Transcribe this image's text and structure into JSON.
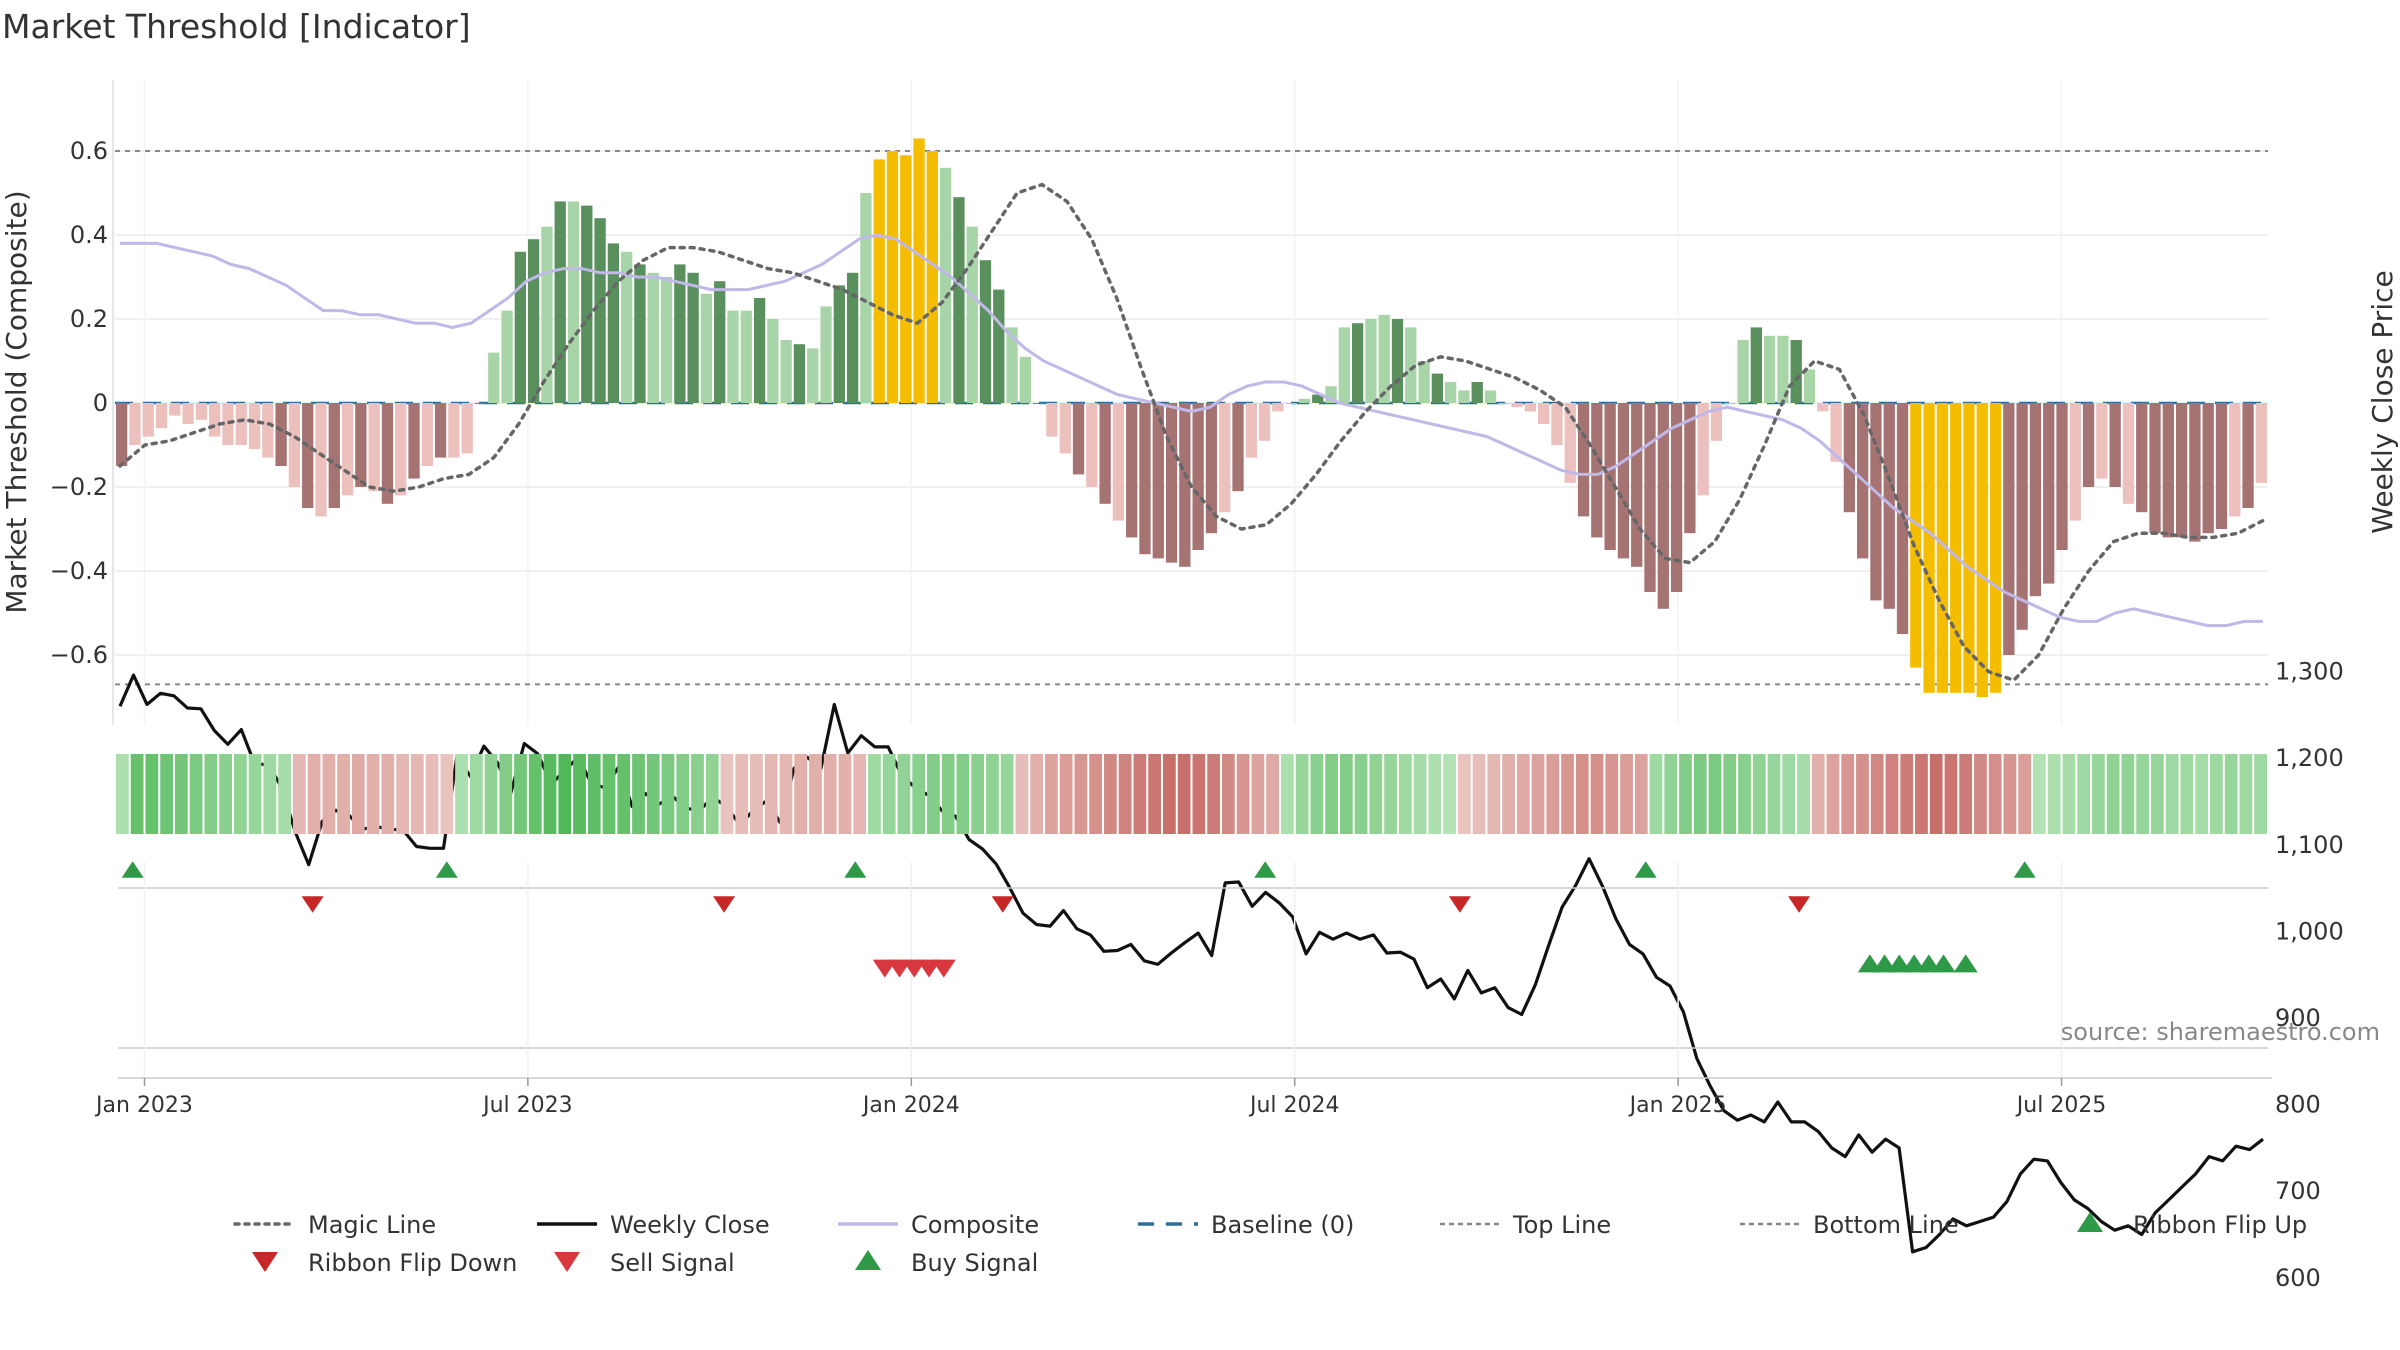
{
  "chart_data": {
    "type": "bar",
    "title": "Market Threshold [Indicator]",
    "ylabel_left": "Market Threshold (Composite)",
    "ylabel_right": "Weekly Close Price",
    "source": "source: sharemaestro.com",
    "ylim_left": [
      -0.77,
      0.77
    ],
    "ylim_right": [
      600,
      1300
    ],
    "yticks_left": [
      -0.6,
      -0.4,
      -0.2,
      0,
      0.2,
      0.4,
      0.6
    ],
    "yticks_left_labels": [
      "−0.6",
      "−0.4",
      "−0.2",
      "0",
      "0.2",
      "0.4",
      "0.6"
    ],
    "yticks_right": [
      600,
      700,
      800,
      900,
      1000,
      1100,
      1200,
      1300
    ],
    "yticks_right_labels": [
      "600",
      "700",
      "800",
      "900",
      "1,000",
      "1,100",
      "1,200",
      "1,300"
    ],
    "x_range_weeks": [
      0,
      146
    ],
    "date_ticks": [
      {
        "label": "Jan 2023",
        "week": 2
      },
      {
        "label": "Jul 2023",
        "week": 28
      },
      {
        "label": "Jan 2024",
        "week": 54
      },
      {
        "label": "Jul 2024",
        "week": 80
      },
      {
        "label": "Jan 2025",
        "week": 106
      },
      {
        "label": "Jul 2025",
        "week": 132
      }
    ],
    "top_line": 0.6,
    "bottom_line": -0.67,
    "baseline": 0,
    "colors": {
      "dark_green": "#5a8f5e",
      "light_green": "#a8d5a8",
      "dark_red": "#a67373",
      "light_red": "#ebc0bd",
      "gold": "#f5bd00",
      "close": "#111111",
      "composite": "#c0b8e8",
      "magic": "#666666",
      "baseline": "#2e6f9e",
      "buy": "#2e9a47",
      "sell": "#d9383f"
    },
    "series": [
      {
        "name": "Market Threshold",
        "values": [
          -0.15,
          -0.1,
          -0.08,
          -0.06,
          -0.03,
          -0.05,
          -0.04,
          -0.08,
          -0.1,
          -0.1,
          -0.11,
          -0.13,
          -0.15,
          -0.2,
          -0.25,
          -0.27,
          -0.25,
          -0.22,
          -0.2,
          -0.21,
          -0.24,
          -0.22,
          -0.18,
          -0.15,
          -0.13,
          -0.13,
          -0.12,
          0,
          0.12,
          0.22,
          0.36,
          0.39,
          0.42,
          0.48,
          0.48,
          0.47,
          0.44,
          0.38,
          0.36,
          0.33,
          0.31,
          0.3,
          0.33,
          0.31,
          0.26,
          0.29,
          0.22,
          0.22,
          0.25,
          0.2,
          0.15,
          0.14,
          0.13,
          0.23,
          0.28,
          0.31,
          0.5,
          0.58,
          0.6,
          0.59,
          0.63,
          0.6,
          0.56,
          0.49,
          0.42,
          0.34,
          0.27,
          0.18,
          0.11,
          0,
          -0.08,
          -0.12,
          -0.17,
          -0.2,
          -0.24,
          -0.28,
          -0.32,
          -0.36,
          -0.37,
          -0.38,
          -0.39,
          -0.35,
          -0.31,
          -0.26,
          -0.21,
          -0.13,
          -0.09,
          -0.02,
          0,
          0.01,
          0.02,
          0.04,
          0.18,
          0.19,
          0.2,
          0.21,
          0.2,
          0.18,
          0.1,
          0.07,
          0.05,
          0.03,
          0.05,
          0.03,
          0,
          -0.01,
          -0.02,
          -0.05,
          -0.1,
          -0.19,
          -0.27,
          -0.32,
          -0.35,
          -0.37,
          -0.39,
          -0.45,
          -0.49,
          -0.45,
          -0.31,
          -0.22,
          -0.09,
          0,
          0.15,
          0.18,
          0.16,
          0.16,
          0.15,
          0.08,
          -0.02,
          -0.14,
          -0.26,
          -0.37,
          -0.47,
          -0.49,
          -0.55,
          -0.63,
          -0.69,
          -0.69,
          -0.69,
          -0.69,
          -0.7,
          -0.69,
          -0.6,
          -0.54,
          -0.46,
          -0.43,
          -0.35,
          -0.28,
          -0.2,
          -0.18,
          -0.2,
          -0.24,
          -0.26,
          -0.31,
          -0.32,
          -0.32,
          -0.33,
          -0.31,
          -0.3,
          -0.27,
          -0.25,
          -0.19
        ]
      },
      {
        "name": "Weekly Close",
        "values": [
          1260,
          1296,
          1262,
          1275,
          1272,
          1258,
          1257,
          1232,
          1216,
          1233,
          1193,
          1193,
          1166,
          1115,
          1077,
          1127,
          1140,
          1134,
          1118,
          1121,
          1118,
          1117,
          1098,
          1096,
          1096,
          1202,
          1179,
          1214,
          1195,
          1160,
          1217,
          1205,
          1170,
          1186,
          1201,
          1170,
          1166,
          1190,
          1144,
          1159,
          1147,
          1156,
          1142,
          1140,
          1155,
          1144,
          1123,
          1140,
          1151,
          1125,
          1188,
          1201,
          1188,
          1262,
          1206,
          1226,
          1213,
          1213,
          1180,
          1166,
          1157,
          1139,
          1133,
          1106,
          1095,
          1078,
          1051,
          1021,
          1008,
          1006,
          1024,
          1003,
          996,
          977,
          978,
          985,
          966,
          962,
          975,
          987,
          998,
          972,
          1056,
          1057,
          1029,
          1045,
          1033,
          1017,
          974,
          999,
          991,
          998,
          991,
          996,
          975,
          976,
          968,
          935,
          945,
          922,
          955,
          929,
          935,
          912,
          904,
          938,
          984,
          1028,
          1053,
          1084,
          1052,
          1014,
          985,
          974,
          947,
          937,
          907,
          853,
          821,
          793,
          782,
          788,
          780,
          803,
          780,
          780,
          769,
          750,
          740,
          765,
          745,
          760,
          750,
          630,
          635,
          650,
          668,
          660,
          665,
          670,
          688,
          720,
          737,
          735,
          710,
          690,
          680,
          665,
          655,
          660,
          650,
          675,
          690,
          705,
          720,
          740,
          735,
          752,
          748,
          760
        ]
      },
      {
        "name": "Composite",
        "values": [
          0.38,
          0.38,
          0.38,
          0.37,
          0.36,
          0.35,
          0.33,
          0.32,
          0.3,
          0.28,
          0.25,
          0.22,
          0.22,
          0.21,
          0.21,
          0.2,
          0.19,
          0.19,
          0.18,
          0.19,
          0.22,
          0.25,
          0.29,
          0.31,
          0.32,
          0.32,
          0.31,
          0.31,
          0.3,
          0.3,
          0.29,
          0.28,
          0.27,
          0.27,
          0.27,
          0.28,
          0.29,
          0.31,
          0.33,
          0.36,
          0.39,
          0.4,
          0.39,
          0.36,
          0.33,
          0.3,
          0.26,
          0.22,
          0.17,
          0.13,
          0.1,
          0.08,
          0.06,
          0.04,
          0.02,
          0.01,
          0,
          -0.01,
          -0.02,
          -0.01,
          0.02,
          0.04,
          0.05,
          0.05,
          0.04,
          0.02,
          0,
          -0.01,
          -0.02,
          -0.03,
          -0.04,
          -0.05,
          -0.06,
          -0.07,
          -0.08,
          -0.1,
          -0.12,
          -0.14,
          -0.16,
          -0.17,
          -0.17,
          -0.15,
          -0.12,
          -0.09,
          -0.06,
          -0.04,
          -0.02,
          -0.01,
          -0.02,
          -0.03,
          -0.04,
          -0.06,
          -0.09,
          -0.13,
          -0.17,
          -0.21,
          -0.25,
          -0.28,
          -0.31,
          -0.35,
          -0.39,
          -0.42,
          -0.45,
          -0.47,
          -0.49,
          -0.51,
          -0.52,
          -0.52,
          -0.5,
          -0.49,
          -0.5,
          -0.51,
          -0.52,
          -0.53,
          -0.53,
          -0.52,
          -0.52
        ]
      },
      {
        "name": "Magic Line",
        "values": [
          -0.15,
          -0.1,
          -0.09,
          -0.07,
          -0.05,
          -0.04,
          -0.05,
          -0.08,
          -0.12,
          -0.16,
          -0.2,
          -0.21,
          -0.2,
          -0.18,
          -0.17,
          -0.13,
          -0.05,
          0.05,
          0.14,
          0.22,
          0.29,
          0.34,
          0.37,
          0.37,
          0.36,
          0.34,
          0.32,
          0.31,
          0.29,
          0.27,
          0.24,
          0.21,
          0.19,
          0.24,
          0.32,
          0.41,
          0.5,
          0.52,
          0.48,
          0.39,
          0.25,
          0.08,
          -0.08,
          -0.2,
          -0.27,
          -0.3,
          -0.29,
          -0.24,
          -0.17,
          -0.09,
          -0.02,
          0.04,
          0.09,
          0.11,
          0.1,
          0.08,
          0.06,
          0.03,
          -0.01,
          -0.1,
          -0.2,
          -0.3,
          -0.37,
          -0.38,
          -0.33,
          -0.23,
          -0.1,
          0.04,
          0.1,
          0.08,
          -0.03,
          -0.18,
          -0.34,
          -0.47,
          -0.58,
          -0.64,
          -0.66,
          -0.6,
          -0.49,
          -0.4,
          -0.33,
          -0.31,
          -0.31,
          -0.32,
          -0.32,
          -0.31,
          -0.28
        ]
      }
    ],
    "ribbon": [
      0.2,
      0.7,
      0.7,
      0.65,
      0.6,
      0.55,
      0.5,
      0.45,
      0.4,
      0.35,
      0.3,
      0.25,
      -0.25,
      -0.3,
      -0.3,
      -0.3,
      -0.35,
      -0.3,
      -0.3,
      -0.25,
      -0.25,
      -0.2,
      -0.15,
      0.2,
      0.3,
      0.4,
      0.5,
      0.6,
      0.7,
      0.8,
      0.85,
      0.8,
      0.75,
      0.7,
      0.7,
      0.65,
      0.6,
      0.55,
      0.5,
      0.45,
      0.4,
      -0.15,
      -0.2,
      -0.2,
      -0.25,
      -0.25,
      -0.3,
      -0.3,
      -0.3,
      -0.3,
      -0.25,
      0.3,
      0.35,
      0.4,
      0.45,
      0.5,
      0.5,
      0.5,
      0.45,
      0.4,
      0.35,
      -0.2,
      -0.3,
      -0.4,
      -0.45,
      -0.5,
      -0.55,
      -0.6,
      -0.65,
      -0.7,
      -0.75,
      -0.8,
      -0.8,
      -0.75,
      -0.7,
      -0.6,
      -0.5,
      -0.4,
      -0.35,
      0.2,
      0.35,
      0.45,
      0.5,
      0.5,
      0.45,
      0.4,
      0.35,
      0.3,
      0.25,
      0.2,
      0.15,
      -0.15,
      -0.2,
      -0.25,
      -0.3,
      -0.35,
      -0.4,
      -0.45,
      -0.5,
      -0.55,
      -0.55,
      -0.5,
      -0.45,
      -0.4,
      0.3,
      0.4,
      0.5,
      0.55,
      0.55,
      0.5,
      0.45,
      0.4,
      0.35,
      0.3,
      0.25,
      -0.3,
      -0.4,
      -0.5,
      -0.55,
      -0.6,
      -0.65,
      -0.7,
      -0.75,
      -0.8,
      -0.75,
      -0.7,
      -0.6,
      -0.55,
      -0.5,
      -0.45,
      0.15,
      0.2,
      0.25,
      0.3,
      0.35,
      0.4,
      0.4,
      0.35,
      0.35,
      0.3,
      0.3,
      0.25,
      0.3,
      0.35,
      0.3,
      0.3
    ],
    "ribbon_flip_up_weeks": [
      1.2,
      22.5,
      50.2,
      78,
      103.8,
      129.5
    ],
    "ribbon_flip_down_weeks": [
      13.4,
      41.3,
      60.2,
      91.2,
      114.2
    ],
    "sell_signal_weeks": [
      52.2,
      53.2,
      54.2,
      55.2,
      56.2
    ],
    "buy_signal_weeks": [
      119,
      120,
      121,
      122,
      123,
      124,
      125.5
    ],
    "legend": [
      {
        "label": "Magic Line",
        "kind": "dotted",
        "color": "#666666"
      },
      {
        "label": "Weekly Close",
        "kind": "solid",
        "color": "#111111"
      },
      {
        "label": "Composite",
        "kind": "solid-light",
        "color": "#c0b8e8"
      },
      {
        "label": "Baseline (0)",
        "kind": "dashed",
        "color": "#2e6f9e"
      },
      {
        "label": "Top Line",
        "kind": "dotted-fine",
        "color": "#888888"
      },
      {
        "label": "Bottom Line",
        "kind": "dotted-fine",
        "color": "#888888"
      },
      {
        "label": "Ribbon Flip Up",
        "kind": "tri-up",
        "color": "#2e9a47"
      },
      {
        "label": "Ribbon Flip Down",
        "kind": "tri-down",
        "color": "#c62828"
      },
      {
        "label": "Sell Signal",
        "kind": "tri-down",
        "color": "#d9383f"
      },
      {
        "label": "Buy Signal",
        "kind": "tri-up",
        "color": "#2e9a47"
      }
    ]
  }
}
